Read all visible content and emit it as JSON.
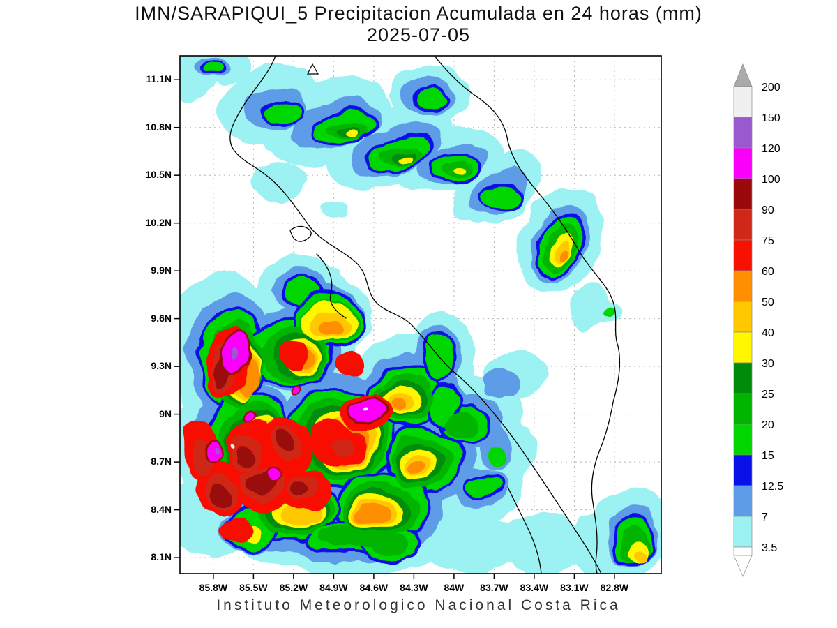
{
  "title": {
    "line1": "IMN/SARAPIQUI_5 Precipitacion Acumulada en 24 horas (mm)",
    "line2": "2025-07-05"
  },
  "footer": {
    "text": "Instituto Meteorologico Nacional Costa Rica"
  },
  "axes": {
    "lat_ticks": [
      "11.1N",
      "10.8N",
      "10.5N",
      "10.2N",
      "9.9N",
      "9.6N",
      "9.3N",
      "9N",
      "8.7N",
      "8.4N",
      "8.1N"
    ],
    "lon_ticks": [
      "85.8W",
      "85.5W",
      "85.2W",
      "84.9W",
      "84.6W",
      "84.3W",
      "84W",
      "83.7W",
      "83.4W",
      "83.1W",
      "82.8W"
    ]
  },
  "legend": {
    "unit": "mm",
    "boundaries": [
      "200",
      "150",
      "120",
      "100",
      "90",
      "75",
      "60",
      "50",
      "40",
      "30",
      "25",
      "20",
      "15",
      "12.5",
      "7",
      "3.5"
    ],
    "band_colors_top_to_bottom": [
      "#f0f0f0",
      "#9b59d0",
      "#fa00fa",
      "#9a0a0a",
      "#d02818",
      "#f81000",
      "#ff8f00",
      "#ffc800",
      "#fff600",
      "#008c0a",
      "#00b400",
      "#00d600",
      "#0a10e8",
      "#5f9ce8",
      "#9cf2f2"
    ],
    "over_arrow_color": "#aaaaaa",
    "under_arrow_color": "#ffffff"
  },
  "map": {
    "grid_color": "#b4b4b4",
    "coast_color": "#000000",
    "background_color": "#ffffff"
  }
}
